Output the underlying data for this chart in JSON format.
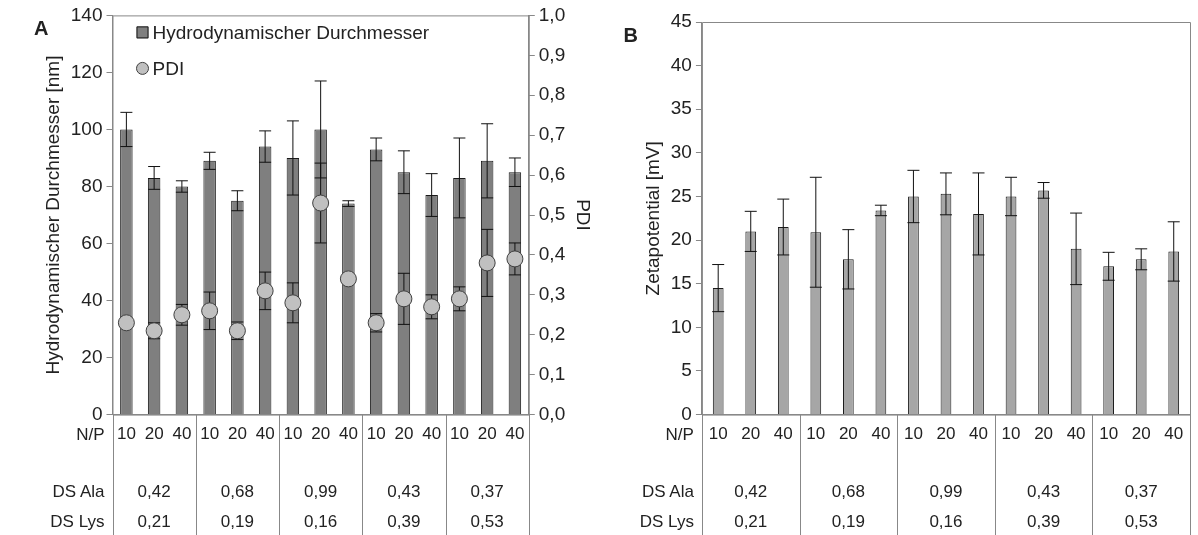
{
  "chart_data": [
    {
      "type": "bar",
      "title": "A",
      "ylabel": "Hydrodynamischer Durchmesser [nm]",
      "y2label": "PDI",
      "categories": [
        "10",
        "20",
        "40",
        "10",
        "20",
        "40",
        "10",
        "20",
        "40",
        "10",
        "20",
        "40",
        "10",
        "20",
        "40"
      ],
      "series": [
        {
          "name": "Hydrodynamischer Durchmesser",
          "color": "#7f7f7f",
          "values": [
            100,
            83,
            80,
            89,
            75,
            94,
            90,
            100,
            74,
            93,
            85,
            77,
            83,
            89,
            85
          ],
          "errors": [
            6,
            4,
            2,
            3,
            3.5,
            5.5,
            13,
            17,
            1,
            4,
            7.5,
            7.5,
            14,
            13,
            5
          ]
        },
        {
          "name": "PDI",
          "type": "scatter",
          "axis": "y2",
          "color": "#c0c0c0",
          "values": [
            0.23,
            0.21,
            0.25,
            0.26,
            0.21,
            0.31,
            0.28,
            0.53,
            0.34,
            0.23,
            0.29,
            0.27,
            0.29,
            0.38,
            0.39
          ],
          "errors": [
            null,
            0.02,
            0.026,
            0.047,
            0.022,
            0.047,
            0.05,
            0.1,
            null,
            0.023,
            0.064,
            0.03,
            0.03,
            0.084,
            0.04
          ]
        }
      ],
      "ylim": [
        0,
        140
      ],
      "yticks": [
        0,
        20,
        40,
        60,
        80,
        100,
        120,
        140
      ],
      "y2lim": [
        0,
        1
      ],
      "y2ticks": [
        {
          "value": 0,
          "label": "0,0"
        },
        {
          "value": 0.1,
          "label": "0,1"
        },
        {
          "value": 0.2,
          "label": "0,2"
        },
        {
          "value": 0.3,
          "label": "0,3"
        },
        {
          "value": 0.4,
          "label": "0,4"
        },
        {
          "value": 0.5,
          "label": "0,5"
        },
        {
          "value": 0.6,
          "label": "0,6"
        },
        {
          "value": 0.7,
          "label": "0,7"
        },
        {
          "value": 0.8,
          "label": "0,8"
        },
        {
          "value": 0.9,
          "label": "0,9"
        },
        {
          "value": 1,
          "label": "1,0"
        }
      ],
      "marker": "circle",
      "legend": "top left",
      "grid": false,
      "annotations": [
        "N/P",
        "DS Ala",
        "0,42",
        "0,68",
        "0,99",
        "0,43",
        "0,37",
        "DS Lys",
        "0,21",
        "0,19",
        "0,16",
        "0,39",
        "0,53"
      ]
    },
    {
      "type": "bar",
      "title": "B",
      "ylabel": "Zetapotential [mV]",
      "categories": [
        "10",
        "20",
        "40",
        "10",
        "20",
        "40",
        "10",
        "20",
        "40",
        "10",
        "20",
        "40",
        "10",
        "20",
        "40"
      ],
      "values": [
        14.5,
        21,
        21.5,
        20.9,
        17.8,
        23.4,
        25,
        25.3,
        23,
        25,
        25.7,
        19,
        17,
        17.8,
        18.7
      ],
      "errors": [
        2.7,
        2.3,
        3.2,
        6.3,
        3.4,
        0.6,
        3,
        2.4,
        4.7,
        2.2,
        0.9,
        4.1,
        1.6,
        1.2,
        3.4
      ],
      "color": "#a6a6a6",
      "ylim": [
        0,
        45
      ],
      "yticks": [
        0,
        5,
        10,
        15,
        20,
        25,
        30,
        35,
        40,
        45
      ],
      "grid": false,
      "annotations": [
        "N/P",
        "DS Ala",
        "0,42",
        "0,68",
        "0,99",
        "0,43",
        "0,37",
        "DS Lys",
        "0,21",
        "0,19",
        "0,16",
        "0,39",
        "0,53"
      ]
    }
  ]
}
